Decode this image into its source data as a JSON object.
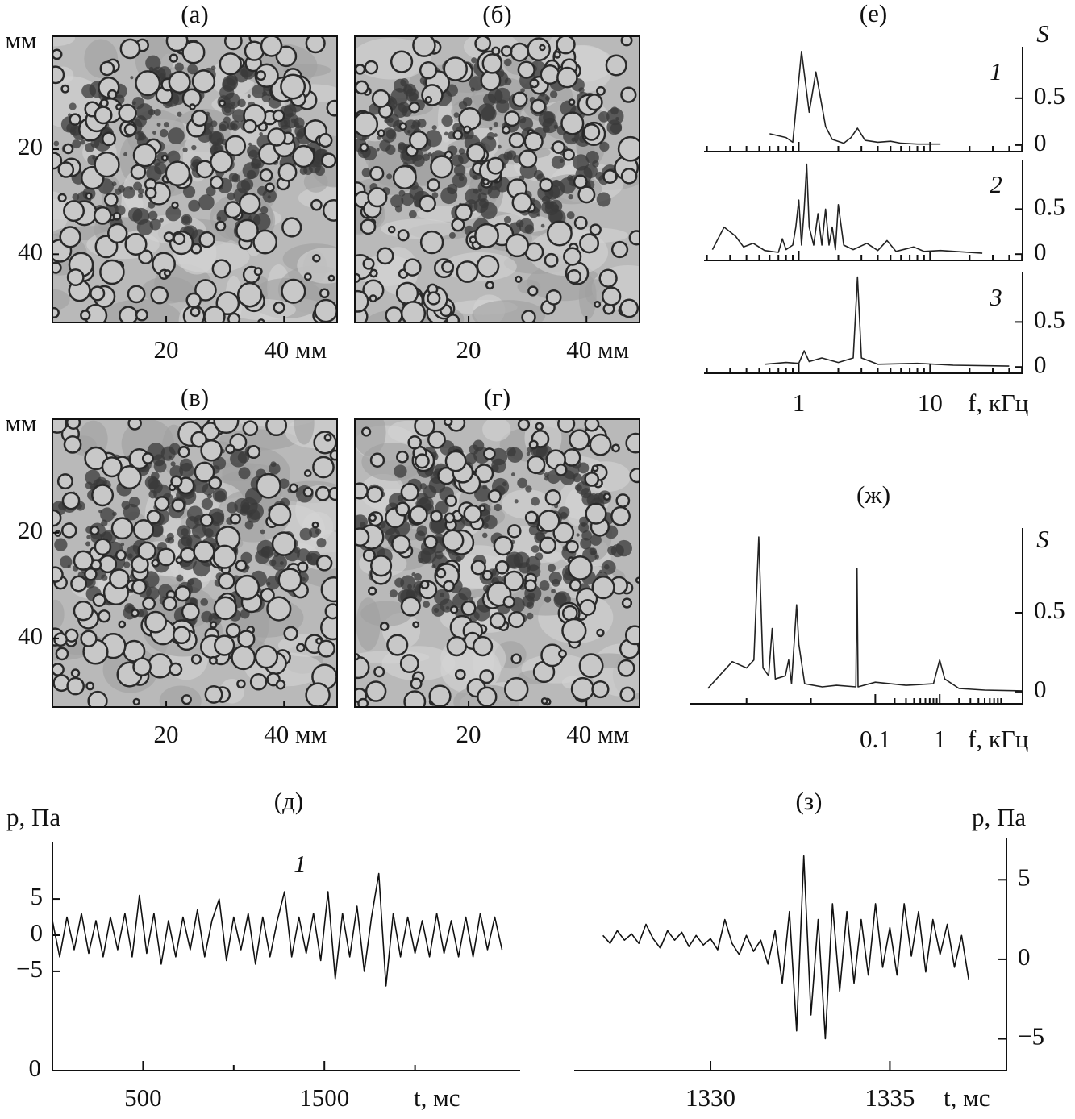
{
  "images": [
    {
      "label": "(а)",
      "y_unit": "мм",
      "xlim": [
        0.7,
        49
      ],
      "ylim": [
        -1.5,
        53
      ],
      "xticks": [
        20,
        {
          "value": 40,
          "label": "40 мм"
        }
      ],
      "yticks": [
        20,
        40
      ]
    },
    {
      "label": "(б)",
      "xlim": [
        0.7,
        49
      ],
      "ylim": [
        -1.5,
        53
      ],
      "xticks": [
        20,
        {
          "value": 40,
          "label": "40 мм"
        }
      ]
    },
    {
      "label": "(в)",
      "y_unit": "мм",
      "xlim": [
        0.7,
        49
      ],
      "ylim": [
        -1.5,
        53
      ],
      "xticks": [
        20,
        {
          "value": 40,
          "label": "40 мм"
        }
      ],
      "yticks": [
        20,
        40
      ]
    },
    {
      "label": "(г)",
      "xlim": [
        0.7,
        49
      ],
      "ylim": [
        -1.5,
        53
      ],
      "xticks": [
        20,
        {
          "value": 40,
          "label": "40 мм"
        }
      ]
    }
  ],
  "chart_data": [
    {
      "type": "line",
      "title": "(е)",
      "stacked_panels": true,
      "log_x": true,
      "y_axis_side": "right",
      "xlabel": "f, кГц",
      "ylabel": "S",
      "xlim": [
        0.19,
        50.6
      ],
      "ylim": [
        -0.07,
        1.05
      ],
      "xticks": [
        1,
        10
      ],
      "xminor_ticks": [
        0.2,
        0.3,
        0.4,
        0.5,
        0.6,
        0.7,
        0.8,
        0.9,
        2,
        3,
        4,
        5,
        6,
        7,
        8,
        9,
        20,
        30,
        40,
        50
      ],
      "yticks": [
        0,
        0.5
      ],
      "series": [
        {
          "name": "1",
          "color": "#222",
          "x": [
            0.6,
            0.8,
            0.9,
            1.05,
            1.2,
            1.35,
            1.6,
            1.8,
            2.2,
            2.5,
            2.8,
            3.2,
            4,
            5,
            6,
            8,
            12
          ],
          "values": [
            0.12,
            0.08,
            0.03,
            1.0,
            0.35,
            0.78,
            0.2,
            0.06,
            0.02,
            0.08,
            0.18,
            0.05,
            0.03,
            0.04,
            0.02,
            0.01,
            0.01
          ]
        },
        {
          "name": "2",
          "color": "#222",
          "x": [
            0.22,
            0.27,
            0.33,
            0.38,
            0.45,
            0.55,
            0.7,
            0.75,
            0.8,
            0.9,
            0.95,
            1.0,
            1.05,
            1.1,
            1.15,
            1.2,
            1.3,
            1.4,
            1.5,
            1.6,
            1.7,
            1.8,
            1.9,
            2.0,
            2.2,
            2.6,
            3.3,
            4,
            4.7,
            5.5,
            7.5,
            9,
            12,
            25
          ],
          "values": [
            0.05,
            0.3,
            0.2,
            0.08,
            0.12,
            0.04,
            0.02,
            0.17,
            0.05,
            0.1,
            0.3,
            0.6,
            0.1,
            0.5,
            1.0,
            0.3,
            0.1,
            0.45,
            0.1,
            0.5,
            0.1,
            0.3,
            0.05,
            0.55,
            0.1,
            0.05,
            0.12,
            0.04,
            0.15,
            0.03,
            0.08,
            0.03,
            0.04,
            0.01
          ]
        },
        {
          "name": "3",
          "color": "#222",
          "x": [
            0.55,
            0.8,
            1,
            1.1,
            1.2,
            1.5,
            2,
            2.6,
            2.8,
            3,
            4,
            8,
            15,
            40
          ],
          "values": [
            0.03,
            0.05,
            0.04,
            0.18,
            0.06,
            0.1,
            0.05,
            0.1,
            1.0,
            0.1,
            0.03,
            0.04,
            0.02,
            0.01
          ]
        }
      ]
    },
    {
      "type": "line",
      "title": "(ж)",
      "log_x": true,
      "y_axis_side": "right",
      "xlabel": "f, кГц",
      "ylabel": "S",
      "xlim": [
        0.00013,
        19.4
      ],
      "ylim": [
        -0.077,
        1.036
      ],
      "xticks": [
        0.1,
        1
      ],
      "xminor_ticks": [
        0.001,
        0.01,
        0.2,
        0.3,
        0.4,
        0.5,
        0.6,
        0.7,
        0.8,
        0.9,
        2,
        3,
        4,
        5,
        6,
        7,
        8,
        9
      ],
      "yticks": [
        0,
        0.5
      ],
      "series": [
        {
          "name": null,
          "color": "#222",
          "x": [
            0.00025,
            0.0006,
            0.001,
            0.0013,
            0.00155,
            0.0018,
            0.0022,
            0.0025,
            0.0028,
            0.004,
            0.0045,
            0.005,
            0.006,
            0.0065,
            0.008,
            0.015,
            0.025,
            0.05,
            0.052,
            0.054,
            0.1,
            0.3,
            0.8,
            1,
            1.2,
            2,
            5,
            19
          ],
          "values": [
            0.02,
            0.19,
            0.15,
            0.2,
            0.98,
            0.15,
            0.1,
            0.4,
            0.08,
            0.1,
            0.2,
            0.05,
            0.55,
            0.3,
            0.05,
            0.03,
            0.04,
            0.03,
            0.78,
            0.03,
            0.06,
            0.04,
            0.05,
            0.2,
            0.08,
            0.02,
            0.01,
            0.005
          ]
        }
      ]
    },
    {
      "type": "line",
      "title": "(д)",
      "y_axis_side": "left",
      "xlabel": "t, мс",
      "ylabel": "p, Па",
      "xlim": [
        0,
        2580
      ],
      "ylim": [
        -18.7,
        12.8
      ],
      "xticks": [
        0,
        500,
        1500
      ],
      "xminor_ticks": [
        1000,
        2000
      ],
      "yticks": [
        5,
        0,
        {
          "value": -5,
          "label": "−5"
        }
      ],
      "series": [
        {
          "name": "1",
          "color": "#111",
          "x": [
            0,
            40,
            80,
            120,
            160,
            200,
            240,
            280,
            320,
            360,
            400,
            440,
            480,
            520,
            560,
            600,
            640,
            680,
            720,
            760,
            800,
            840,
            880,
            920,
            960,
            1000,
            1040,
            1080,
            1120,
            1160,
            1200,
            1240,
            1280,
            1320,
            1360,
            1400,
            1440,
            1480,
            1520,
            1560,
            1600,
            1640,
            1680,
            1720,
            1760,
            1800,
            1840,
            1880,
            1920,
            1960,
            2000,
            2040,
            2080,
            2120,
            2160,
            2200,
            2240,
            2280,
            2320,
            2360,
            2400,
            2440,
            2480
          ],
          "values": [
            2,
            -3,
            2.5,
            -2,
            3,
            -2.5,
            2,
            -3,
            2.5,
            -2,
            3,
            -3,
            5.5,
            -2.5,
            3,
            -4,
            2,
            -3,
            2.5,
            -2,
            3.5,
            -3,
            2,
            5,
            -3.5,
            2.5,
            -2,
            3,
            -4,
            2.5,
            -3,
            2,
            6,
            -3,
            2.5,
            -2.5,
            3,
            -3.5,
            6,
            -6,
            3,
            -3,
            4,
            -5,
            2.5,
            8.5,
            -7,
            3,
            -3,
            2.5,
            -2.5,
            2,
            -3,
            3,
            -2.5,
            2,
            -3,
            2.5,
            -3,
            3,
            -2,
            2.5,
            -2
          ]
        }
      ]
    },
    {
      "type": "line",
      "title": "(з)",
      "y_axis_side": "right",
      "xlabel": "t, мс",
      "ylabel": "p, Па",
      "xlim": [
        1326.2,
        1338.25
      ],
      "ylim": [
        -7,
        7.6
      ],
      "xticks": [
        1330,
        1335
      ],
      "xminor_ticks": [],
      "yticks": [
        5,
        0,
        {
          "value": -5,
          "label": "−5"
        }
      ],
      "series": [
        {
          "name": null,
          "color": "#111",
          "x": [
            1327,
            1327.2,
            1327.4,
            1327.6,
            1327.8,
            1328,
            1328.2,
            1328.4,
            1328.6,
            1328.8,
            1329,
            1329.2,
            1329.4,
            1329.6,
            1329.8,
            1330,
            1330.2,
            1330.4,
            1330.6,
            1330.8,
            1331,
            1331.2,
            1331.4,
            1331.6,
            1331.8,
            1332,
            1332.2,
            1332.4,
            1332.6,
            1332.8,
            1333,
            1333.2,
            1333.4,
            1333.6,
            1333.8,
            1334,
            1334.2,
            1334.4,
            1334.6,
            1334.8,
            1335,
            1335.2,
            1335.4,
            1335.6,
            1335.8,
            1336,
            1336.2,
            1336.4,
            1336.6,
            1336.8,
            1337,
            1337.2
          ],
          "values": [
            1.5,
            1.0,
            1.8,
            1.2,
            1.6,
            1.0,
            2.2,
            1.3,
            0.7,
            1.8,
            1.2,
            1.7,
            0.8,
            1.5,
            0.9,
            1.3,
            0.6,
            2.5,
            1.0,
            0.3,
            1.5,
            0.5,
            1.2,
            -0.3,
            1.8,
            -1.5,
            3.0,
            -4.5,
            6.5,
            -3.5,
            2.5,
            -5.0,
            3.5,
            -2.0,
            3.0,
            -1.5,
            2.5,
            -1.0,
            3.5,
            -0.5,
            2.0,
            -1.0,
            3.5,
            0.2,
            3.0,
            -0.8,
            2.5,
            0.3,
            2.2,
            -0.5,
            1.5,
            -1.3
          ]
        }
      ]
    }
  ]
}
